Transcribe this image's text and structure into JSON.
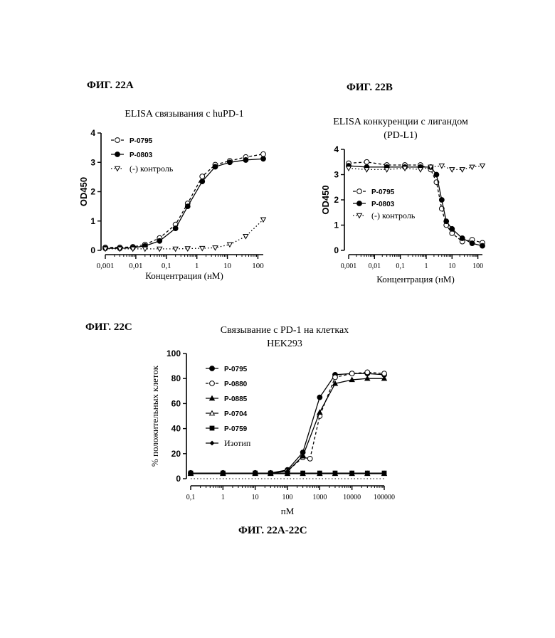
{
  "labels": {
    "fig_a": "ФИГ. 22А",
    "fig_b": "ФИГ. 22В",
    "fig_c": "ФИГ. 22С",
    "caption": "ФИГ. 22А-22С"
  },
  "chart_data": [
    {
      "id": "a",
      "type": "scatter",
      "title": "ELISA связывания с huPD-1",
      "xlabel": "Концентрация (нМ)",
      "ylabel": "OD450",
      "xscale": "log",
      "xlim": [
        0.001,
        150
      ],
      "ylim": [
        0,
        4
      ],
      "xticks": [
        "0,001",
        "0,01",
        "0,1",
        "1",
        "10",
        "100"
      ],
      "yticks": [
        "0",
        "1",
        "2",
        "3",
        "4"
      ],
      "legend": "top-left",
      "series": [
        {
          "name": "P-0795",
          "marker": "circle-open",
          "line": "dashed",
          "x": [
            0.001,
            0.003,
            0.008,
            0.02,
            0.06,
            0.2,
            0.5,
            1.5,
            4,
            12,
            40,
            150
          ],
          "y": [
            0.1,
            0.1,
            0.12,
            0.2,
            0.42,
            0.88,
            1.6,
            2.52,
            2.92,
            3.05,
            3.18,
            3.28
          ]
        },
        {
          "name": "P-0803",
          "marker": "circle-filled",
          "line": "solid",
          "x": [
            0.001,
            0.003,
            0.008,
            0.02,
            0.06,
            0.2,
            0.5,
            1.5,
            4,
            12,
            40,
            150
          ],
          "y": [
            0.07,
            0.07,
            0.09,
            0.15,
            0.32,
            0.75,
            1.5,
            2.35,
            2.85,
            3.0,
            3.08,
            3.12
          ]
        },
        {
          "name": "(-) контроль",
          "marker": "triangle-down-open",
          "line": "dotted",
          "x": [
            0.001,
            0.003,
            0.008,
            0.02,
            0.06,
            0.2,
            0.5,
            1.5,
            4,
            12,
            40,
            150
          ],
          "y": [
            0.05,
            0.05,
            0.05,
            0.05,
            0.05,
            0.05,
            0.06,
            0.07,
            0.09,
            0.2,
            0.48,
            1.05
          ]
        }
      ]
    },
    {
      "id": "b",
      "type": "scatter",
      "title": "ELISA конкуренции с лигандом (PD-L1)",
      "xlabel": "Концентрация (нМ)",
      "ylabel": "OD450",
      "xscale": "log",
      "xlim": [
        0.001,
        150
      ],
      "ylim": [
        0,
        4
      ],
      "xticks": [
        "0,001",
        "0,01",
        "0,1",
        "1",
        "10",
        "100"
      ],
      "yticks": [
        "0",
        "1",
        "2",
        "3",
        "4"
      ],
      "legend": "left",
      "series": [
        {
          "name": "P-0795",
          "marker": "circle-open",
          "line": "dashed",
          "x": [
            0.001,
            0.005,
            0.03,
            0.15,
            0.6,
            1.5,
            2.5,
            4,
            6,
            10,
            25,
            60,
            150
          ],
          "y": [
            3.45,
            3.5,
            3.38,
            3.38,
            3.38,
            3.2,
            2.7,
            1.65,
            1.0,
            0.68,
            0.35,
            0.42,
            0.3
          ]
        },
        {
          "name": "P-0803",
          "marker": "circle-filled",
          "line": "solid",
          "x": [
            0.001,
            0.005,
            0.03,
            0.15,
            0.6,
            1.5,
            2.5,
            4,
            6,
            10,
            25,
            60,
            150
          ],
          "y": [
            3.35,
            3.3,
            3.3,
            3.3,
            3.3,
            3.3,
            3.0,
            2.0,
            1.15,
            0.85,
            0.48,
            0.28,
            0.18
          ]
        },
        {
          "name": "(-) контроль",
          "marker": "triangle-down-open",
          "line": "dotted",
          "x": [
            0.001,
            0.005,
            0.03,
            0.15,
            0.6,
            1.5,
            4,
            10,
            25,
            60,
            150
          ],
          "y": [
            3.25,
            3.2,
            3.2,
            3.25,
            3.2,
            3.3,
            3.35,
            3.2,
            3.2,
            3.3,
            3.35
          ]
        }
      ]
    },
    {
      "id": "c",
      "type": "scatter",
      "title": "Связывание с PD-1 на клетках HEK293",
      "xlabel": "пМ",
      "ylabel": "% положительных клеток",
      "xscale": "log",
      "xlim": [
        0.1,
        100000
      ],
      "ylim": [
        0,
        100
      ],
      "xticks": [
        "0,1",
        "1",
        "10",
        "100",
        "1000",
        "10000",
        "100000"
      ],
      "yticks": [
        "0",
        "20",
        "40",
        "60",
        "80",
        "100"
      ],
      "legend": "top-left",
      "series": [
        {
          "name": "P-0795",
          "marker": "circle-filled",
          "line": "solid",
          "x": [
            0.1,
            1,
            10,
            30,
            100,
            300,
            1000,
            3000,
            10000,
            30000,
            100000
          ],
          "y": [
            4.5,
            4.5,
            4.5,
            4.5,
            7,
            21,
            65,
            83,
            84,
            84,
            83
          ]
        },
        {
          "name": "P-0880",
          "marker": "circle-open",
          "line": "dashed",
          "x": [
            0.1,
            1,
            10,
            30,
            100,
            300,
            500,
            1000,
            3000,
            10000,
            30000,
            100000
          ],
          "y": [
            4.5,
            4.5,
            4.5,
            4.5,
            6,
            17,
            16,
            50,
            81,
            84,
            85,
            84
          ]
        },
        {
          "name": "P-0885",
          "marker": "triangle-filled",
          "line": "solid",
          "x": [
            0.1,
            1,
            10,
            30,
            100,
            300,
            1000,
            3000,
            10000,
            30000,
            100000
          ],
          "y": [
            4.5,
            4.5,
            4.5,
            4.5,
            6,
            18,
            53,
            76,
            79,
            80,
            80
          ]
        },
        {
          "name": "P-0704",
          "marker": "triangle-open",
          "line": "solid",
          "x": [
            0.1,
            1,
            10,
            30,
            100,
            300,
            1000,
            3000,
            10000,
            30000,
            100000
          ],
          "y": [
            4,
            4,
            4,
            4,
            4,
            4,
            4,
            4,
            4,
            4,
            4
          ]
        },
        {
          "name": "P-0759",
          "marker": "square-filled",
          "line": "solid",
          "x": [
            0.1,
            1,
            10,
            30,
            100,
            300,
            1000,
            3000,
            10000,
            30000,
            100000
          ],
          "y": [
            4.5,
            4.5,
            4.5,
            4.5,
            4.5,
            4.5,
            4.5,
            4.5,
            4.5,
            4.5,
            4.5
          ]
        },
        {
          "name": "Изотип",
          "marker": "diamond-filled",
          "line": "solid",
          "x": [
            0.1,
            1,
            10,
            30,
            100,
            300,
            1000,
            3000,
            10000,
            30000,
            100000
          ],
          "y": [
            4.5,
            4.5,
            4.5,
            4.5,
            4.5,
            4.5,
            4.5,
            4.5,
            4.5,
            4.5,
            4.5
          ]
        }
      ]
    }
  ]
}
